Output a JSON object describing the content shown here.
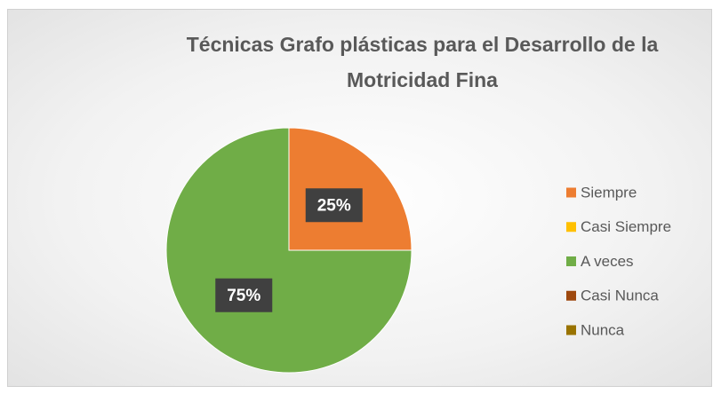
{
  "chart_data": {
    "type": "pie",
    "title": "Técnicas Grafo plásticas para el Desarrollo de la Motricidad Fina",
    "categories": [
      "Siempre",
      "Casi Siempre",
      "A veces",
      "Casi Nunca",
      "Nunca"
    ],
    "values": [
      25,
      0,
      75,
      0,
      0
    ],
    "value_labels": [
      "25%",
      null,
      "75%",
      null,
      null
    ],
    "colors": [
      "#ED7D31",
      "#FFC000",
      "#70AD47",
      "#9E480E",
      "#997300"
    ],
    "legend": "right"
  }
}
